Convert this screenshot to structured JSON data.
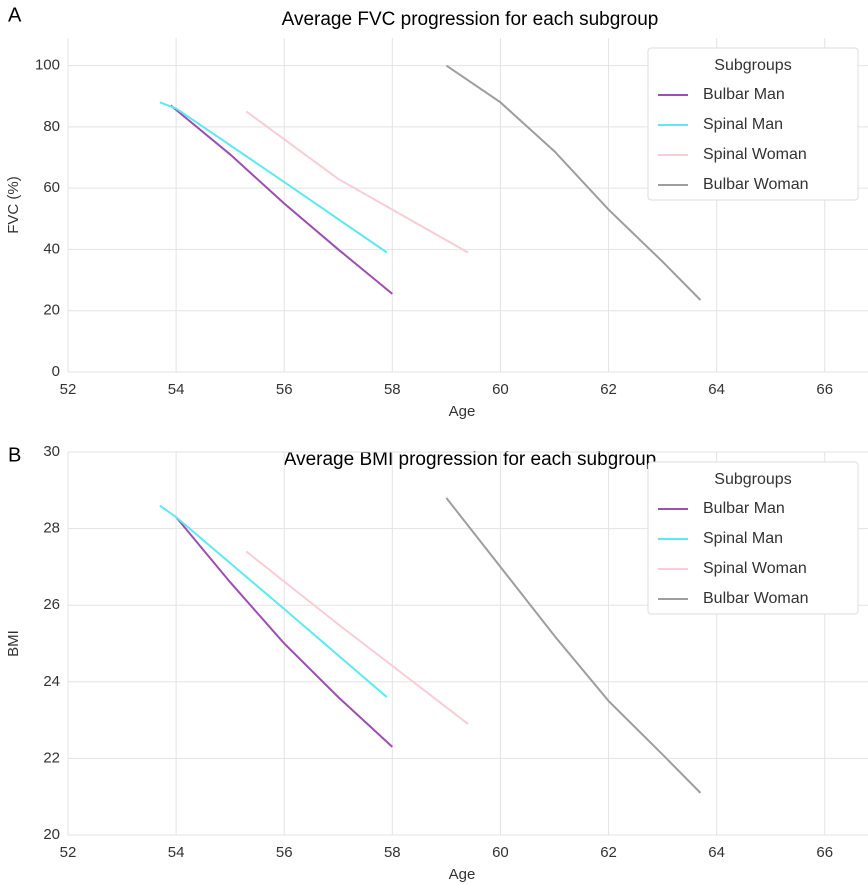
{
  "chart_data": [
    {
      "type": "line",
      "panel": "A",
      "title": "Average FVC progression for each subgroup",
      "xlabel": "Age",
      "ylabel": "FVC (%)",
      "xlim": [
        52,
        66.8
      ],
      "xticks": [
        52,
        54,
        56,
        58,
        60,
        62,
        64,
        66
      ],
      "ylim": [
        0,
        109
      ],
      "yticks": [
        0,
        20,
        40,
        60,
        80,
        100
      ],
      "grid": true,
      "legend_title": "Subgroups",
      "legend": "upper right",
      "series": [
        {
          "name": "Bulbar Man",
          "color": "#9b4fae",
          "x": [
            53.9,
            55,
            56,
            57,
            58
          ],
          "values": [
            87,
            71,
            55,
            40,
            25.5
          ]
        },
        {
          "name": "Spinal Man",
          "color": "#5ee8f0",
          "x": [
            53.7,
            54,
            56,
            57.9
          ],
          "values": [
            88,
            86,
            62,
            39
          ]
        },
        {
          "name": "Spinal Woman",
          "color": "#f8cdd6",
          "x": [
            55.3,
            57,
            59.4
          ],
          "values": [
            85,
            63,
            39
          ]
        },
        {
          "name": "Bulbar Woman",
          "color": "#9e9e9e",
          "x": [
            59,
            60,
            61,
            62,
            63,
            63.7
          ],
          "values": [
            100,
            88,
            72,
            53,
            36,
            23.5
          ]
        }
      ]
    },
    {
      "type": "line",
      "panel": "B",
      "title": "Average BMI progression for each subgroup",
      "xlabel": "Age",
      "ylabel": "BMI",
      "xlim": [
        52,
        66.8
      ],
      "xticks": [
        52,
        54,
        56,
        58,
        60,
        62,
        64,
        66
      ],
      "ylim": [
        20,
        30
      ],
      "yticks": [
        20,
        22,
        24,
        26,
        28,
        30
      ],
      "grid": true,
      "legend_title": "Subgroups",
      "legend": "upper right",
      "series": [
        {
          "name": "Bulbar Man",
          "color": "#9b4fae",
          "x": [
            54,
            55,
            56,
            57,
            58
          ],
          "values": [
            28.3,
            26.6,
            25,
            23.6,
            22.3
          ]
        },
        {
          "name": "Spinal Man",
          "color": "#5ee8f0",
          "x": [
            53.7,
            54,
            56,
            57.9
          ],
          "values": [
            28.6,
            28.3,
            25.9,
            23.6
          ]
        },
        {
          "name": "Spinal Woman",
          "color": "#f8cdd6",
          "x": [
            55.3,
            57,
            59.4
          ],
          "values": [
            27.4,
            25.5,
            22.9
          ]
        },
        {
          "name": "Bulbar Woman",
          "color": "#9e9e9e",
          "x": [
            59,
            60,
            61,
            62,
            63,
            63.7
          ],
          "values": [
            28.8,
            27,
            25.2,
            23.5,
            22.1,
            21.1
          ]
        }
      ]
    }
  ]
}
